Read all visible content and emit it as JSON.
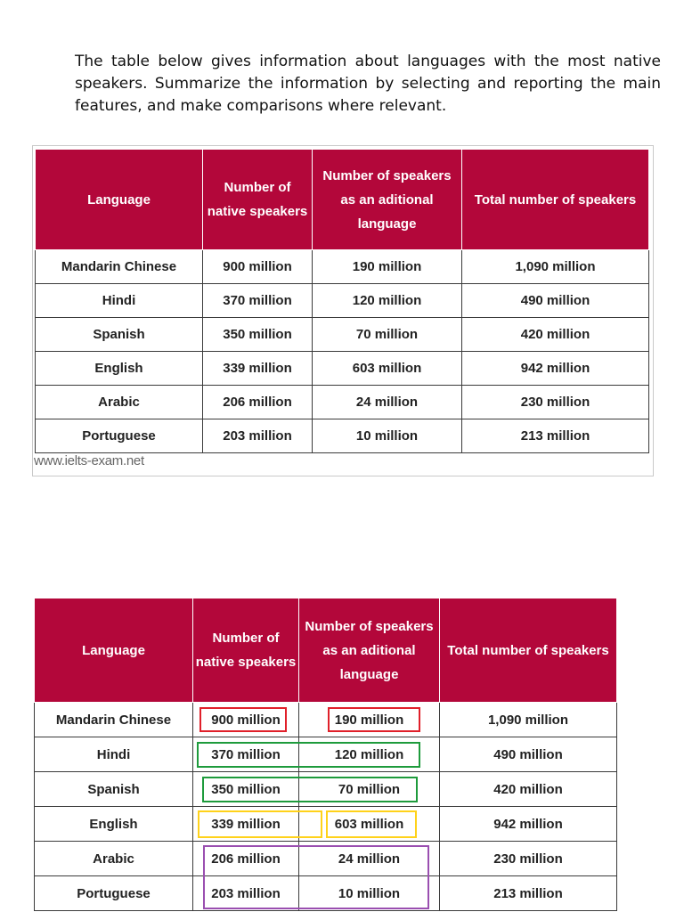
{
  "prompt": "The table below gives information about languages with the most native speakers. Summarize the information by selecting and reporting the main features, and make comparisons where relevant.",
  "watermark": "www.ielts-exam.net",
  "headers": {
    "language": "Language",
    "native": "Number of native speakers",
    "additional": "Number of speakers as an aditional language",
    "total": "Total number of speakers"
  },
  "rows": [
    {
      "language": "Mandarin Chinese",
      "native": "900 million",
      "additional": "190 million",
      "total": "1,090 million"
    },
    {
      "language": "Hindi",
      "native": "370 million",
      "additional": "120 million",
      "total": "490 million"
    },
    {
      "language": "Spanish",
      "native": "350 million",
      "additional": "70 million",
      "total": "420 million"
    },
    {
      "language": "English",
      "native": "339 million",
      "additional": "603 million",
      "total": "942 million"
    },
    {
      "language": "Arabic",
      "native": "206 million",
      "additional": "24 million",
      "total": "230 million"
    },
    {
      "language": "Portuguese",
      "native": "203 million",
      "additional": "10 million",
      "total": "213 million"
    }
  ],
  "highlight_colors": {
    "red": "#e0202a",
    "green": "#1e9b3c",
    "yellow": "#ffd21a",
    "purple": "#9a4fb0"
  }
}
